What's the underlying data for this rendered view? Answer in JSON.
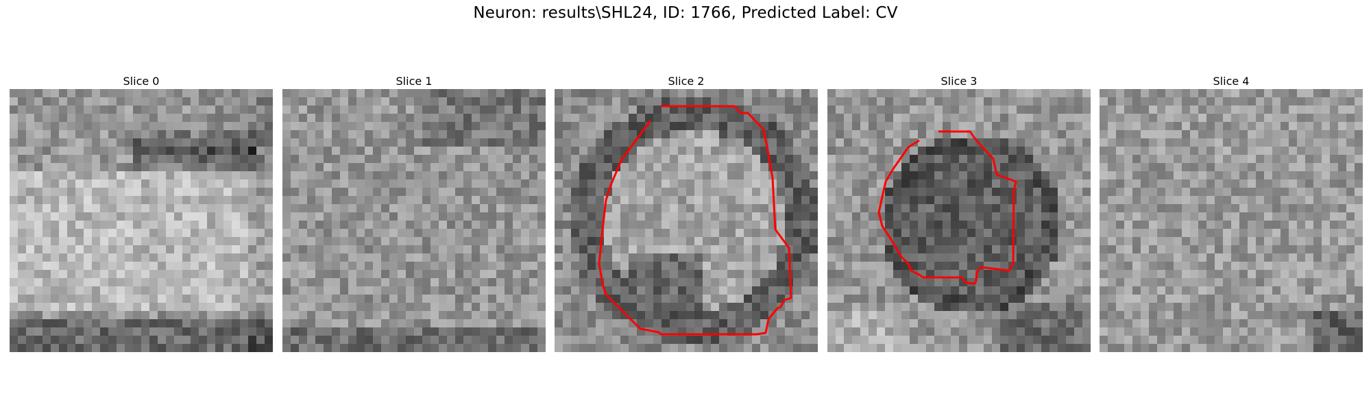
{
  "figure": {
    "title": "Neuron: results\\SHL24, ID: 1766, Predicted Label: CV"
  },
  "contour_color": "#ff0000",
  "panels": [
    {
      "title": "Slice 0",
      "has_contour": false
    },
    {
      "title": "Slice 1",
      "has_contour": false
    },
    {
      "title": "Slice 2",
      "has_contour": true
    },
    {
      "title": "Slice 3",
      "has_contour": true
    },
    {
      "title": "Slice 4",
      "has_contour": false
    }
  ]
}
